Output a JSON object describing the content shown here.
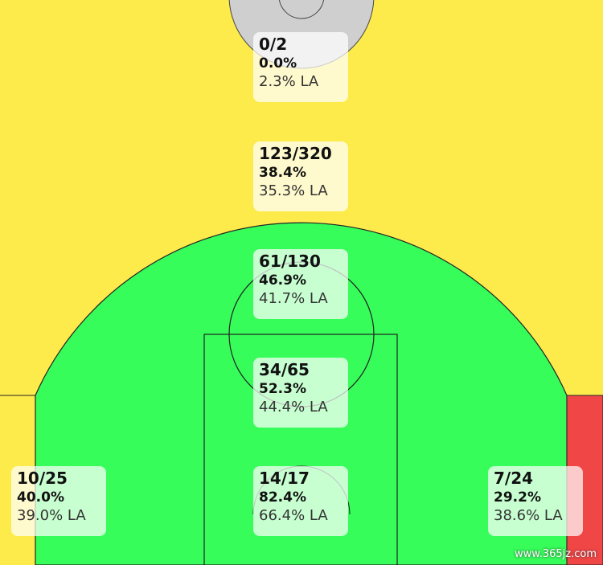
{
  "zones": [
    {
      "made_attempted": "0/2",
      "percentage": "0.0%",
      "league_average": "2.3% LA"
    },
    {
      "made_attempted": "123/320",
      "percentage": "38.4%",
      "league_average": "35.3% LA"
    },
    {
      "made_attempted": "61/130",
      "percentage": "46.9%",
      "league_average": "41.7% LA"
    },
    {
      "made_attempted": "34/65",
      "percentage": "52.3%",
      "league_average": "44.4% LA"
    },
    {
      "made_attempted": "14/17",
      "percentage": "82.4%",
      "league_average": "66.4% LA"
    },
    {
      "made_attempted": "10/25",
      "percentage": "40.0%",
      "league_average": "39.0% LA"
    },
    {
      "made_attempted": "7/24",
      "percentage": "29.2%",
      "league_average": "38.6% LA"
    }
  ],
  "watermark": "www.365jz.com"
}
